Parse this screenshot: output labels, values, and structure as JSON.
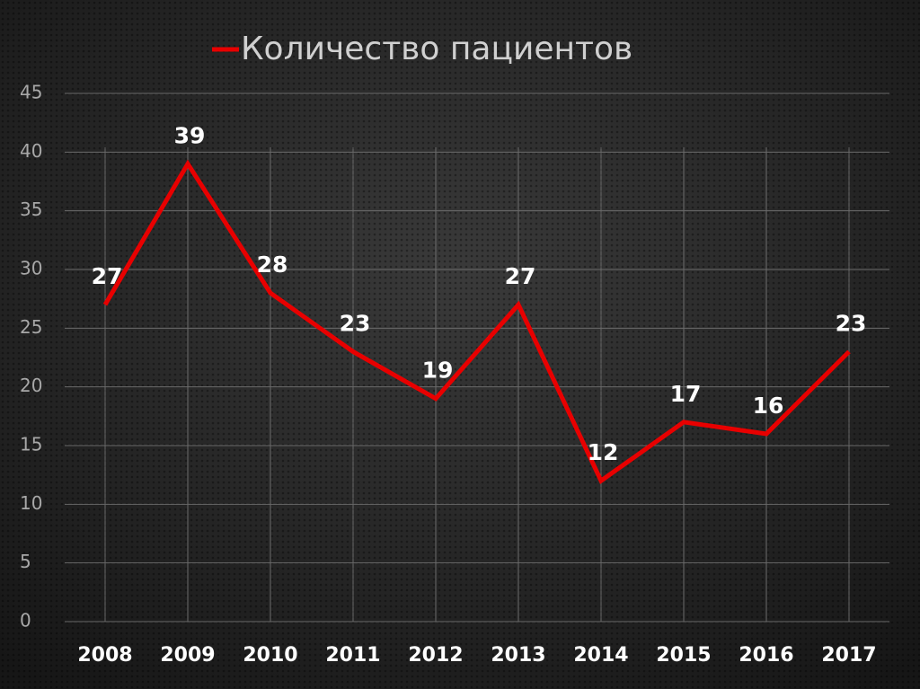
{
  "chart_data": {
    "type": "line",
    "categories": [
      "2008",
      "2009",
      "2010",
      "2011",
      "2012",
      "2013",
      "2014",
      "2015",
      "2016",
      "2017"
    ],
    "series": [
      {
        "name": "Количество пациентов",
        "color": "#e80000",
        "values": [
          27,
          39,
          28,
          23,
          19,
          27,
          12,
          17,
          16,
          23
        ]
      }
    ],
    "ylim": [
      0,
      45
    ],
    "yticks": [
      0,
      5,
      10,
      15,
      20,
      25,
      30,
      35,
      40,
      45
    ],
    "grid": true,
    "legend": "top"
  }
}
